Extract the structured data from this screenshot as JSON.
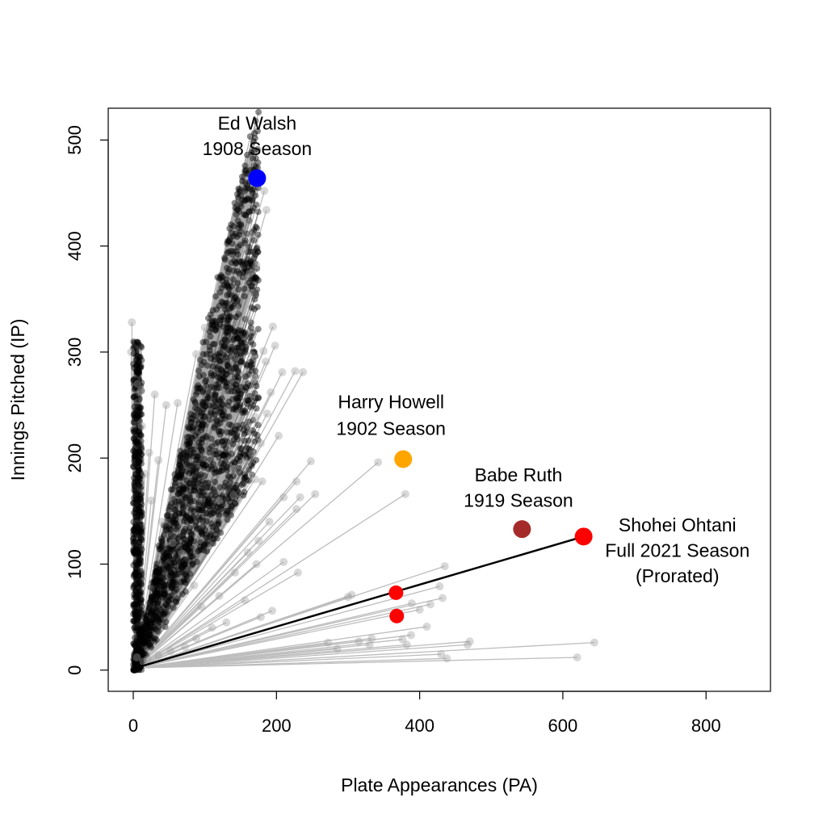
{
  "chart_data": {
    "type": "scatter",
    "title": "",
    "xlabel": "Plate Appearances (PA)",
    "ylabel": "Innings Pitched (IP)",
    "xlim": [
      -35,
      890
    ],
    "ylim": [
      -20,
      530
    ],
    "x_ticks": [
      0,
      200,
      400,
      600,
      800
    ],
    "y_ticks": [
      0,
      100,
      200,
      300,
      400,
      500
    ],
    "grid": false,
    "legend": "none",
    "colors": {
      "background_points": "#000000",
      "connector_lines": "#bdbdbd",
      "ohtani_line": "#000000",
      "ed_walsh": "#0000ff",
      "harry_howell": "#ffa500",
      "babe_ruth": "#a52a2a",
      "ohtani": "#ff0000"
    },
    "origin": [
      3,
      2
    ],
    "segments": [
      [
        172,
        459
      ],
      [
        183,
        452
      ],
      [
        186,
        434
      ],
      [
        160,
        423
      ],
      [
        164,
        411
      ],
      [
        155,
        396
      ],
      [
        172,
        382
      ],
      [
        163,
        374
      ],
      [
        168,
        355
      ],
      [
        145,
        340
      ],
      [
        160,
        331
      ],
      [
        195,
        324
      ],
      [
        198,
        306
      ],
      [
        182,
        301
      ],
      [
        166,
        297
      ],
      [
        208,
        281
      ],
      [
        226,
        282
      ],
      [
        237,
        281
      ],
      [
        185,
        291
      ],
      [
        168,
        276
      ],
      [
        192,
        262
      ],
      [
        187,
        242
      ],
      [
        170,
        239
      ],
      [
        203,
        221
      ],
      [
        178,
        214
      ],
      [
        166,
        204
      ],
      [
        160,
        195
      ],
      [
        139,
        190
      ],
      [
        170,
        180
      ],
      [
        180,
        178
      ],
      [
        140,
        165
      ],
      [
        120,
        160
      ],
      [
        100,
        323
      ],
      [
        88,
        298
      ],
      [
        62,
        252
      ],
      [
        46,
        250
      ],
      [
        30,
        260
      ],
      [
        10,
        263
      ],
      [
        -2,
        328
      ],
      [
        -3,
        300
      ],
      [
        210,
        163
      ],
      [
        228,
        178
      ],
      [
        233,
        163
      ],
      [
        248,
        197
      ],
      [
        254,
        166
      ],
      [
        228,
        152
      ],
      [
        190,
        140
      ],
      [
        175,
        122
      ],
      [
        160,
        111
      ],
      [
        172,
        100
      ],
      [
        142,
        92
      ],
      [
        210,
        102
      ],
      [
        230,
        92
      ],
      [
        120,
        70
      ],
      [
        156,
        66
      ],
      [
        194,
        56
      ],
      [
        178,
        50
      ],
      [
        342,
        196
      ],
      [
        380,
        166
      ],
      [
        305,
        71
      ],
      [
        300,
        69
      ],
      [
        435,
        98
      ],
      [
        428,
        79
      ],
      [
        432,
        68
      ],
      [
        415,
        62
      ],
      [
        389,
        63
      ],
      [
        400,
        57
      ],
      [
        410,
        41
      ],
      [
        388,
        33
      ],
      [
        376,
        29
      ],
      [
        382,
        24
      ],
      [
        333,
        30
      ],
      [
        315,
        27
      ],
      [
        330,
        24
      ],
      [
        272,
        26
      ],
      [
        285,
        20
      ],
      [
        470,
        27
      ],
      [
        467,
        24
      ],
      [
        430,
        15
      ],
      [
        438,
        11
      ],
      [
        644,
        26
      ],
      [
        620,
        12
      ],
      [
        110,
        40
      ],
      [
        88,
        30
      ],
      [
        72,
        22
      ],
      [
        52,
        18
      ],
      [
        35,
        14
      ],
      [
        20,
        10
      ],
      [
        14,
        8
      ],
      [
        5,
        12
      ],
      [
        12,
        230
      ],
      [
        22,
        205
      ],
      [
        35,
        198
      ],
      [
        6,
        270
      ],
      [
        16,
        185
      ],
      [
        25,
        160
      ],
      [
        40,
        140
      ],
      [
        55,
        120
      ],
      [
        68,
        110
      ],
      [
        85,
        80
      ],
      [
        95,
        60
      ],
      [
        130,
        45
      ]
    ],
    "dense_region": {
      "description_values": {
        "lower_slope": 1.1,
        "upper_slope": 3.1,
        "max_pa": 175,
        "count": 1400
      }
    },
    "vertical_cluster": {
      "max_pa": 12,
      "max_ip": 310,
      "count": 500
    },
    "highlights": [
      {
        "label_line1": "Ed Walsh",
        "label_line2": "1908 Season",
        "label_line3": "",
        "pa": 173,
        "ip": 464,
        "color_key": "ed_walsh",
        "size": 11,
        "label_pa": 173,
        "label_ip1": 510,
        "label_ip2": 486,
        "label_ip3": 0,
        "anchor": "middle"
      },
      {
        "label_line1": "Harry Howell",
        "label_line2": "1902 Season",
        "label_line3": "",
        "pa": 377,
        "ip": 199,
        "color_key": "harry_howell",
        "size": 11,
        "label_pa": 360,
        "label_ip1": 247,
        "label_ip2": 222,
        "label_ip3": 0,
        "anchor": "middle"
      },
      {
        "label_line1": "Babe Ruth",
        "label_line2": "1919 Season",
        "label_line3": "",
        "pa": 543,
        "ip": 133,
        "color_key": "babe_ruth",
        "size": 11,
        "label_pa": 538,
        "label_ip1": 178,
        "label_ip2": 154,
        "label_ip3": 0,
        "anchor": "middle"
      },
      {
        "label_line1": "Shohei Ohtani",
        "label_line2": "Full 2021 Season",
        "label_line3": "(Prorated)",
        "pa": 629,
        "ip": 126,
        "color_key": "ohtani",
        "size": 11,
        "label_pa": 760,
        "label_ip1": 131,
        "label_ip2": 107,
        "label_ip3": 83,
        "anchor": "middle"
      }
    ],
    "extra_red_points": [
      {
        "pa": 367,
        "ip": 73
      },
      {
        "pa": 368,
        "ip": 51
      }
    ]
  }
}
